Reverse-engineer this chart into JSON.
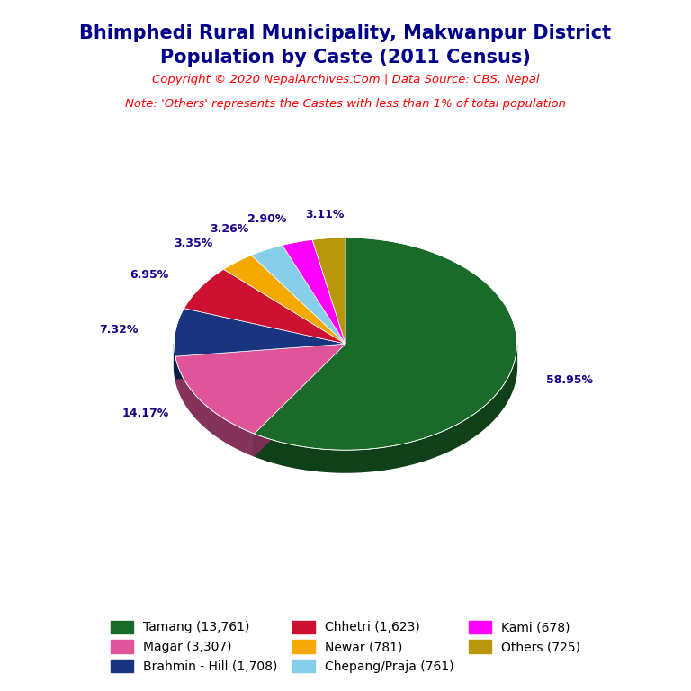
{
  "title_line1": "Bhimphedi Rural Municipality, Makwanpur District",
  "title_line2": "Population by Caste (2011 Census)",
  "title_color": "#00008B",
  "copyright_text": "Copyright © 2020 NepalArchives.Com | Data Source: CBS, Nepal",
  "note_text": "Note: 'Others' represents the Castes with less than 1% of total population",
  "subtitle_color": "#FF0000",
  "labels": [
    "Tamang",
    "Magar",
    "Brahmin - Hill",
    "Chhetri",
    "Newar",
    "Chepang/Praja",
    "Kami",
    "Others"
  ],
  "values": [
    13761,
    3307,
    1708,
    1623,
    781,
    761,
    678,
    725
  ],
  "percentages": [
    58.95,
    14.17,
    7.32,
    6.95,
    3.35,
    3.26,
    2.9,
    3.11
  ],
  "colors": [
    "#1a6b2a",
    "#e0559a",
    "#1a3580",
    "#cc1133",
    "#f5a800",
    "#87ceeb",
    "#ff00ff",
    "#b8960a"
  ],
  "legend_labels": [
    "Tamang (13,761)",
    "Magar (3,307)",
    "Brahmin - Hill (1,708)",
    "Chhetri (1,623)",
    "Newar (781)",
    "Chepang/Praja (761)",
    "Kami (678)",
    "Others (725)"
  ],
  "legend_colors": [
    "#1a6b2a",
    "#e0559a",
    "#1a3580",
    "#cc1133",
    "#f5a800",
    "#87ceeb",
    "#ff00ff",
    "#b8960a"
  ],
  "pct_label_color": "#1a0088",
  "background_color": "#ffffff",
  "depth": 0.06,
  "ellipse_ratio": 0.35
}
